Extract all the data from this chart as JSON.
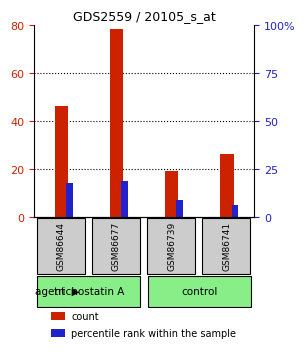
{
  "title": "GDS2559 / 20105_s_at",
  "samples": [
    "GSM86644",
    "GSM86677",
    "GSM86739",
    "GSM86741"
  ],
  "count_values": [
    46,
    78,
    19,
    26
  ],
  "percentile_values": [
    14,
    15,
    7,
    5
  ],
  "ylim_left": [
    0,
    80
  ],
  "ylim_right": [
    0,
    100
  ],
  "yticks_left": [
    0,
    20,
    40,
    60,
    80
  ],
  "yticks_right": [
    0,
    25,
    50,
    75,
    100
  ],
  "ytick_labels_right": [
    "0",
    "25",
    "50",
    "75",
    "100%"
  ],
  "bar_width": 0.35,
  "count_color": "#cc2200",
  "percentile_color": "#2222cc",
  "agent_labels": [
    "trichostatin A",
    "control"
  ],
  "agent_groups": [
    2,
    2
  ],
  "agent_color": "#88ee88",
  "sample_box_color": "#cccccc",
  "grid_color": "#000000",
  "dotted_line_color": "#000000",
  "legend_count": "count",
  "legend_percentile": "percentile rank within the sample",
  "agent_text": "agent",
  "arrow_color": "#888888"
}
